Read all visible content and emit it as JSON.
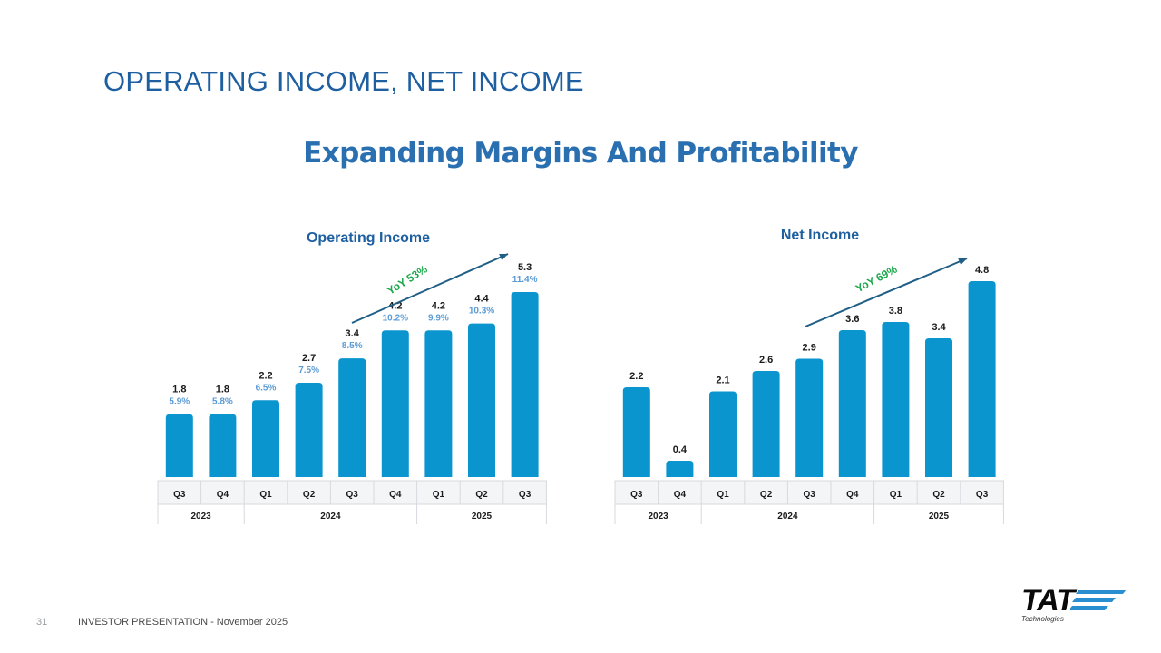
{
  "slide": {
    "title": "OPERATING INCOME, NET INCOME",
    "subtitle": "Expanding Margins And Profitability",
    "page_number": "31",
    "footer": "INVESTOR PRESENTATION  -  November 2025",
    "logo": {
      "word": "TAT",
      "sub": "Technologies",
      "color": "#2a8fd0"
    }
  },
  "colors": {
    "bar": "#0b95cf",
    "margin_text": "#5b9bd5",
    "growth_text": "#1aa84a",
    "arrow": "#1f5f86",
    "title": "#1d5fa0"
  },
  "chart_data": [
    {
      "type": "bar",
      "title": "Operating Income",
      "categories": [
        "Q3",
        "Q4",
        "Q1",
        "Q2",
        "Q3",
        "Q4",
        "Q1",
        "Q2",
        "Q3"
      ],
      "groups": [
        {
          "label": "2023",
          "span": 2
        },
        {
          "label": "2024",
          "span": 4
        },
        {
          "label": "2025",
          "span": 3
        }
      ],
      "series": [
        {
          "values": [
            1.8,
            1.8,
            2.2,
            2.7,
            3.4,
            4.2,
            4.2,
            4.4,
            5.3
          ]
        }
      ],
      "value_labels": [
        "1.8",
        "1.8",
        "2.2",
        "2.7",
        "3.4",
        "4.2",
        "4.2",
        "4.4",
        "5.3"
      ],
      "margin_labels": [
        "5.9%",
        "5.8%",
        "6.5%",
        "7.5%",
        "8.5%",
        "10.2%",
        "9.9%",
        "10.3%",
        "11.4%"
      ],
      "growth_annotation": "YoY 53%"
    },
    {
      "type": "bar",
      "title": "Net Income",
      "categories": [
        "Q3",
        "Q4",
        "Q1",
        "Q2",
        "Q3",
        "Q4",
        "Q1",
        "Q2",
        "Q3"
      ],
      "groups": [
        {
          "label": "2023",
          "span": 2
        },
        {
          "label": "2024",
          "span": 4
        },
        {
          "label": "2025",
          "span": 3
        }
      ],
      "series": [
        {
          "values": [
            2.2,
            0.4,
            2.1,
            2.6,
            2.9,
            3.6,
            3.8,
            3.4,
            4.8
          ]
        }
      ],
      "value_labels": [
        "2.2",
        "0.4",
        "2.1",
        "2.6",
        "2.9",
        "3.6",
        "3.8",
        "3.4",
        "4.8"
      ],
      "margin_labels": [],
      "growth_annotation": "YoY 69%"
    }
  ]
}
